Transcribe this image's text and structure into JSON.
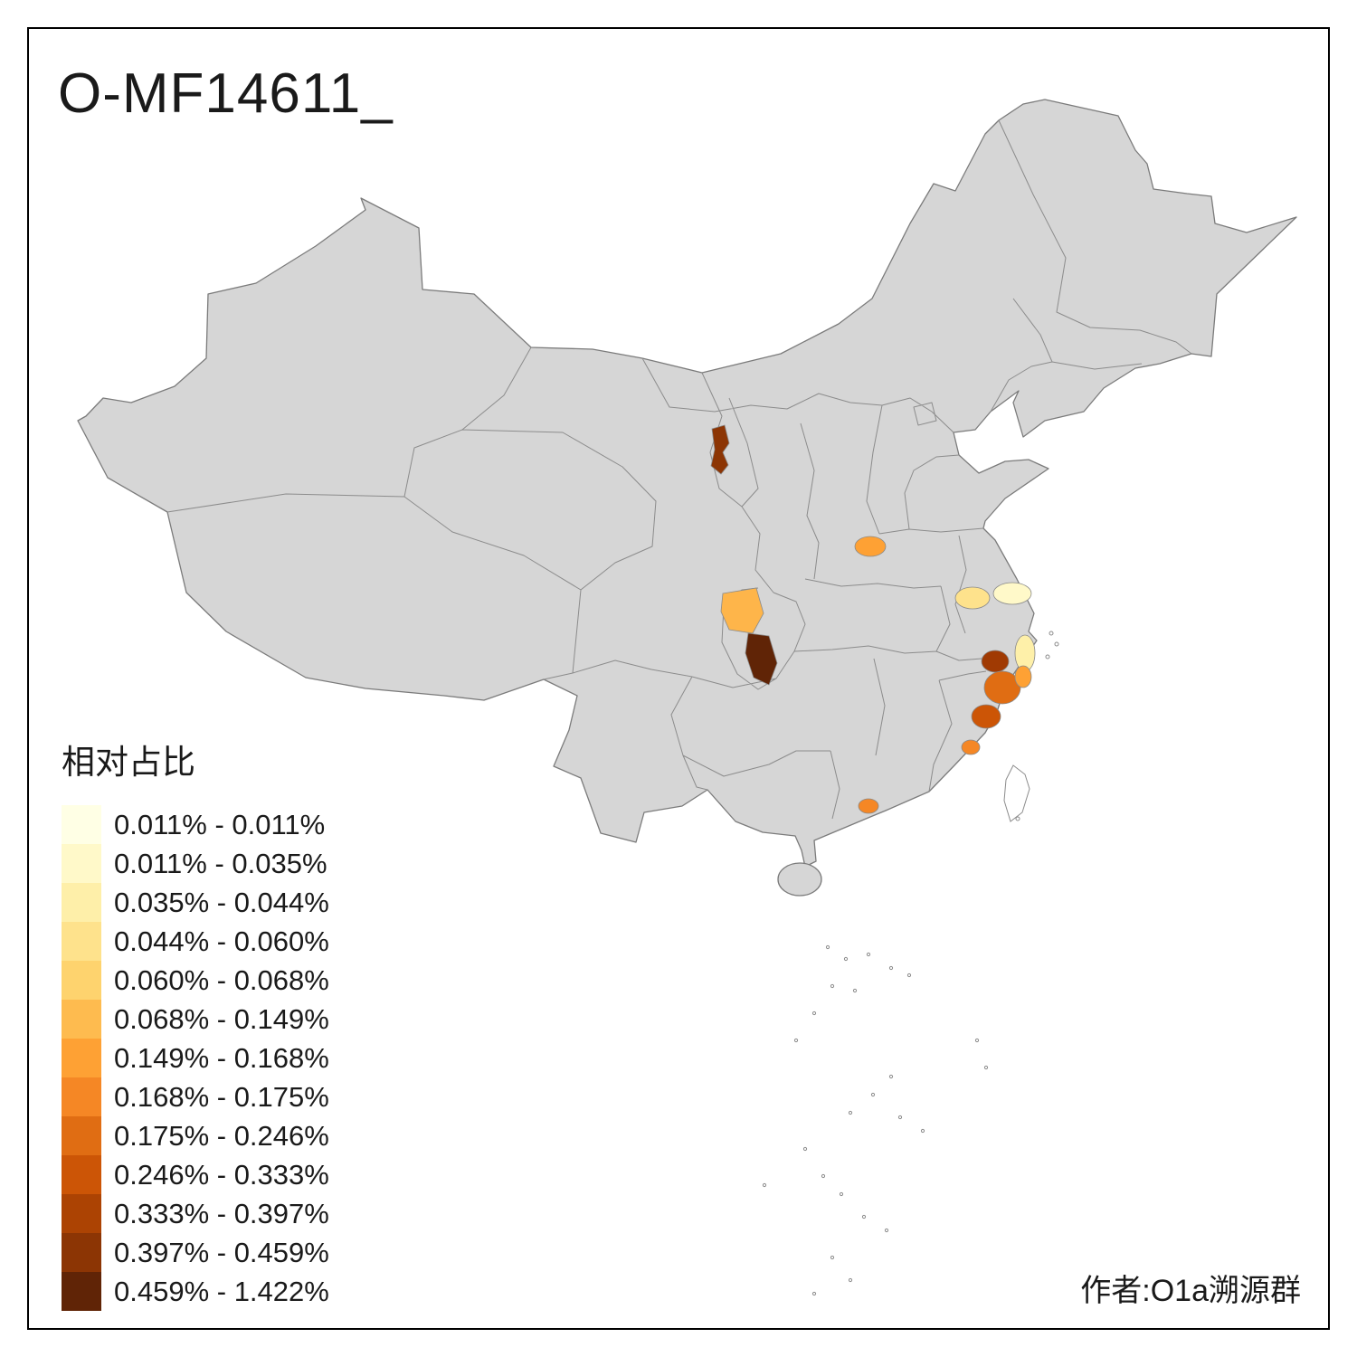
{
  "title": "O-MF14611_",
  "author": "作者:O1a溯源群",
  "legend": {
    "title": "相对占比",
    "items": [
      {
        "label": "0.011% - 0.011%",
        "color": "#FFFFE5"
      },
      {
        "label": "0.011% - 0.035%",
        "color": "#FFF9C9"
      },
      {
        "label": "0.035% - 0.044%",
        "color": "#FEEFA9"
      },
      {
        "label": "0.044% - 0.060%",
        "color": "#FEE28C"
      },
      {
        "label": "0.060% - 0.068%",
        "color": "#FED36E"
      },
      {
        "label": "0.068% - 0.149%",
        "color": "#FEBB4F"
      },
      {
        "label": "0.149% - 0.168%",
        "color": "#FEA134"
      },
      {
        "label": "0.168% - 0.175%",
        "color": "#F58725"
      },
      {
        "label": "0.175% - 0.246%",
        "color": "#E06D13"
      },
      {
        "label": "0.246% - 0.333%",
        "color": "#CC5506"
      },
      {
        "label": "0.333% - 0.397%",
        "color": "#AC4303"
      },
      {
        "label": "0.397% - 0.459%",
        "color": "#8C3504"
      },
      {
        "label": "0.459% - 1.422%",
        "color": "#602406"
      }
    ]
  },
  "map": {
    "land_color": "#D6D6D6",
    "island_color": "#FFFFFF",
    "region_colors": [
      "#8C3504",
      "#FEA134",
      "#FEB54A",
      "#602406",
      "#FEE28C",
      "#FFF9C9",
      "#FEF0A9",
      "#A03A03",
      "#E06D13",
      "#FEA134",
      "#CC5506",
      "#F58725",
      "#F58725"
    ]
  }
}
